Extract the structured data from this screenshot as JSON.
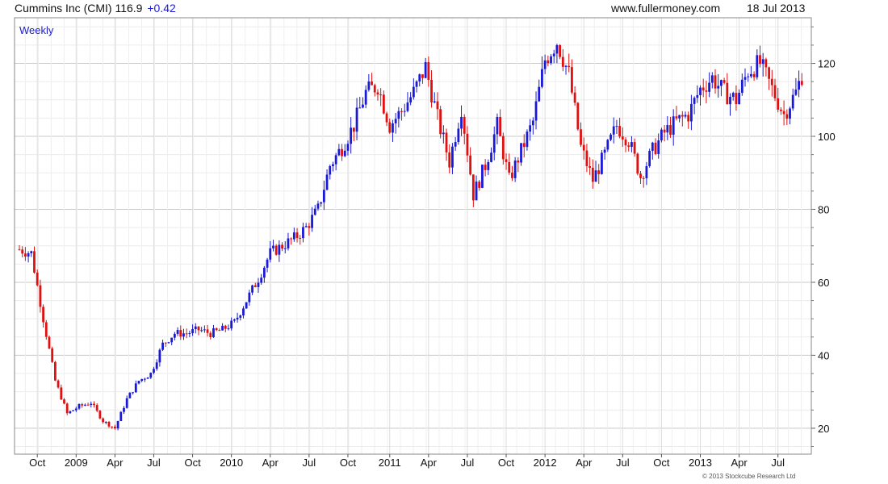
{
  "header": {
    "title": "Cummins Inc (CMI)",
    "price": "116.9",
    "change": "+0.42",
    "site": "www.fullermoney.com",
    "date": "18 Jul 2013"
  },
  "footer": {
    "copyright": "© 2013 Stockcube Research Ltd"
  },
  "colors": {
    "up": "#1a1ad6",
    "down": "#e01010",
    "grid": "#dcdcdc",
    "frame": "#888888",
    "label": "#1a1ad6"
  },
  "chart_data": {
    "type": "candlestick",
    "interval_label": "Weekly",
    "y_ticks": [
      20,
      40,
      60,
      80,
      100,
      120
    ],
    "ylim": [
      12.9,
      132.5
    ],
    "x_tick_labels": [
      "Oct",
      "2009",
      "Apr",
      "Jul",
      "Oct",
      "2010",
      "Apr",
      "Jul",
      "Oct",
      "2011",
      "Apr",
      "Jul",
      "Oct",
      "2012",
      "Apr",
      "Jul",
      "Oct",
      "2013",
      "Apr",
      "Jul"
    ],
    "x_tick_weeks": [
      6,
      19,
      32,
      45,
      58,
      71,
      84,
      97,
      110,
      124,
      137,
      150,
      163,
      176,
      189,
      202,
      215,
      228,
      241,
      254
    ],
    "total_weeks": 263,
    "grid": true,
    "series": [
      {
        "values_note": "weekly close approximations",
        "weeks": [
          0,
          4,
          8,
          12,
          16,
          20,
          24,
          28,
          32,
          36,
          40,
          44,
          48,
          52,
          56,
          60,
          64,
          68,
          72,
          76,
          80,
          84,
          88,
          92,
          96,
          100,
          104,
          108,
          112,
          116,
          120,
          124,
          128,
          132,
          136,
          140,
          144,
          148,
          152,
          156,
          160,
          164,
          168,
          172,
          176,
          180,
          184,
          188,
          192,
          196,
          200,
          204,
          208,
          212,
          216,
          220,
          224,
          228,
          232,
          236,
          240,
          244,
          248,
          252,
          256,
          260,
          262
        ],
        "close": [
          69,
          68,
          50,
          33,
          24,
          26,
          27,
          22,
          20,
          28,
          33,
          35,
          43,
          46,
          46,
          47,
          46,
          47,
          49,
          55,
          61,
          68,
          70,
          72,
          75,
          80,
          92,
          97,
          103,
          112,
          114,
          103,
          107,
          112,
          119,
          105,
          93,
          108,
          84,
          92,
          103,
          88,
          96,
          104,
          121,
          126,
          117,
          97,
          88,
          95,
          103,
          99,
          89,
          96,
          101,
          104,
          106,
          113,
          116,
          112,
          110,
          118,
          120,
          113,
          106,
          112,
          116.9
        ]
      }
    ]
  }
}
